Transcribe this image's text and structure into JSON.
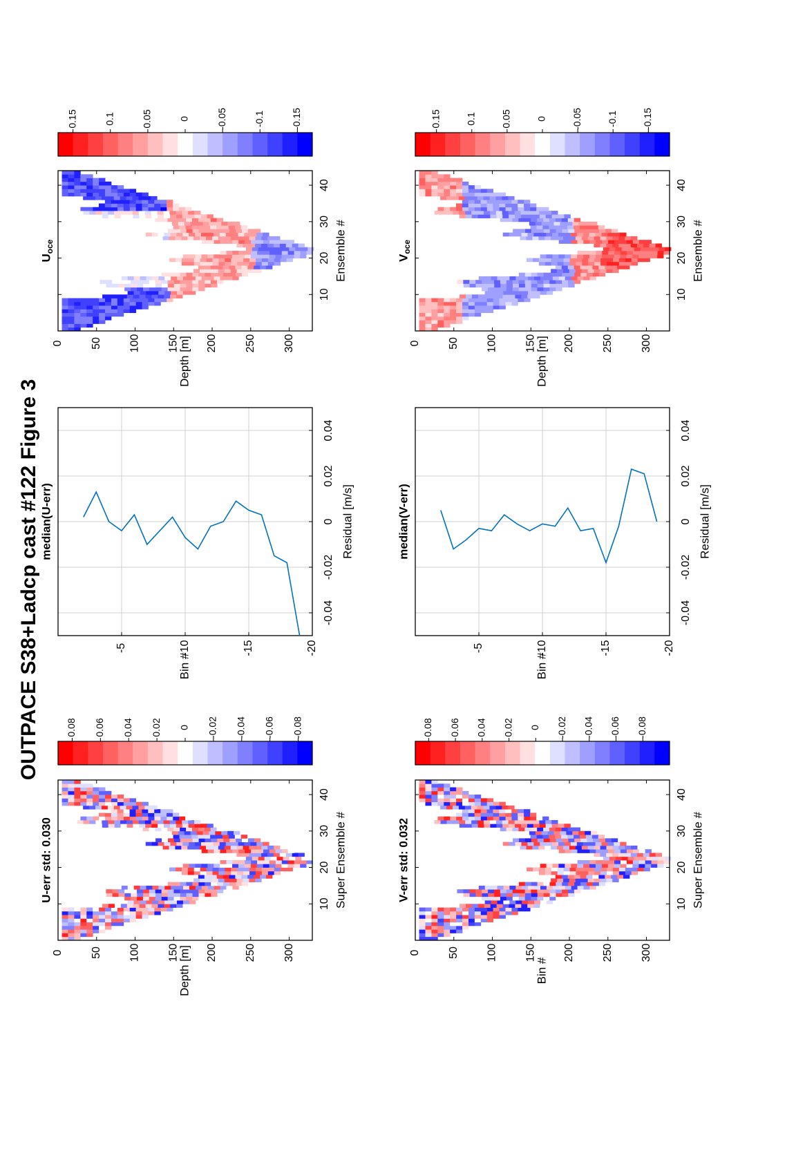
{
  "suptitle": "OUTPACE S38+Ladcp cast #122  Figure 3",
  "chart_data": [
    {
      "id": "u_err_map",
      "type": "heatmap",
      "title": "U-err std: 0.030",
      "xlabel": "Depth [m]",
      "ylabel": "Super Ensemble #",
      "depth_range": [
        0,
        330
      ],
      "depth_ticks": [
        0,
        50,
        100,
        150,
        200,
        250,
        300
      ],
      "ensemble_range": [
        1,
        44
      ],
      "ensemble_ticks": [
        10,
        20,
        30,
        40
      ],
      "pattern": "V-shaped cast track: depth increases from ensemble 1 to ~22 (max ~325 m) then decreases to ensemble 44",
      "colorbar": {
        "range": [
          -0.09,
          0.09
        ],
        "ticks": [
          0.08,
          0.06,
          0.04,
          0.02,
          0,
          -0.02,
          -0.04,
          -0.06,
          -0.08
        ],
        "tick_labels": [
          "0.08",
          "0.06",
          "0.04",
          "0.02",
          "0",
          "-0.02",
          "-0.04",
          "-0.06",
          "-0.08"
        ],
        "colormap": "red-white-blue",
        "positive_color": "#ff0000",
        "negative_color": "#0000ff"
      }
    },
    {
      "id": "u_median",
      "type": "line",
      "title": "median(U-err)",
      "xlabel": "Bin #",
      "ylabel": "Residual [m/s]",
      "bin_range": [
        -20,
        0
      ],
      "bin_ticks": [
        -5,
        -10,
        -15,
        -20
      ],
      "residual_range": [
        -0.05,
        0.05
      ],
      "residual_ticks": [
        -0.04,
        -0.02,
        0,
        0.02,
        0.04
      ],
      "residual_tick_labels": [
        "-0.04",
        "-0.02",
        "0",
        "0.02",
        "0.04"
      ],
      "grid": true,
      "series": [
        {
          "bin": [
            -2,
            -3,
            -4,
            -5,
            -6,
            -7,
            -8,
            -9,
            -10,
            -11,
            -12,
            -13,
            -14,
            -15,
            -16,
            -17,
            -18,
            -19
          ],
          "residual": [
            0.002,
            0.013,
            0.0,
            -0.004,
            0.003,
            -0.01,
            -0.004,
            0.002,
            -0.007,
            -0.012,
            -0.002,
            0.0,
            0.009,
            0.005,
            0.003,
            -0.015,
            -0.018,
            -0.05
          ]
        }
      ]
    },
    {
      "id": "u_oce_map",
      "type": "heatmap",
      "title": "U",
      "title_subscript": "oce",
      "xlabel": "Depth [m]",
      "ylabel": "Ensemble #",
      "depth_range": [
        0,
        330
      ],
      "depth_ticks": [
        0,
        50,
        100,
        150,
        200,
        250,
        300
      ],
      "ensemble_range": [
        1,
        44
      ],
      "ensemble_ticks": [
        10,
        20,
        30,
        40
      ],
      "pattern": "V-shaped cast track; strong blue near 60-130 m at ensembles 1-12 and 35-44, red 150-300 m on both limbs, blue near bottom around ensemble 20-26",
      "colorbar": {
        "range": [
          -0.17,
          0.17
        ],
        "ticks": [
          0.15,
          0.1,
          0.05,
          0,
          -0.05,
          -0.1,
          -0.15
        ],
        "tick_labels": [
          "0.15",
          "0.1",
          "0.05",
          "0",
          "-0.05",
          "-0.1",
          "-0.15"
        ],
        "colormap": "red-white-blue"
      }
    },
    {
      "id": "v_err_map",
      "type": "heatmap",
      "title": "V-err std: 0.032",
      "xlabel": "Bin #",
      "ylabel": "Super Ensemble #",
      "depth_range": [
        0,
        330
      ],
      "depth_ticks": [
        0,
        50,
        100,
        150,
        200,
        250,
        300
      ],
      "ensemble_range": [
        1,
        44
      ],
      "ensemble_ticks": [
        10,
        20,
        30,
        40
      ],
      "colorbar": {
        "range": [
          -0.1,
          0.09
        ],
        "ticks": [
          0.08,
          0.06,
          0.04,
          0.02,
          0,
          -0.02,
          -0.04,
          -0.06,
          -0.08
        ],
        "tick_labels": [
          "0.08",
          "0.06",
          "0.04",
          "0.02",
          "0",
          "-0.02",
          "-0.04",
          "-0.06",
          "-0.08"
        ],
        "colormap": "red-white-blue"
      }
    },
    {
      "id": "v_median",
      "type": "line",
      "title": "median(V-err)",
      "xlabel": "Bin #",
      "ylabel": "Residual [m/s]",
      "bin_range": [
        -20,
        0
      ],
      "bin_ticks": [
        -5,
        -10,
        -15,
        -20
      ],
      "residual_range": [
        -0.05,
        0.05
      ],
      "residual_ticks": [
        -0.04,
        -0.02,
        0,
        0.02,
        0.04
      ],
      "residual_tick_labels": [
        "-0.04",
        "-0.02",
        "0",
        "0.02",
        "0.04"
      ],
      "grid": true,
      "series": [
        {
          "bin": [
            -2,
            -3,
            -4,
            -5,
            -6,
            -7,
            -8,
            -9,
            -10,
            -11,
            -12,
            -13,
            -14,
            -15,
            -16,
            -17,
            -18,
            -19
          ],
          "residual": [
            0.005,
            -0.012,
            -0.008,
            -0.003,
            -0.004,
            0.003,
            -0.001,
            -0.004,
            -0.001,
            -0.002,
            0.006,
            -0.004,
            -0.003,
            -0.018,
            -0.002,
            0.023,
            0.021,
            0.0
          ]
        }
      ]
    },
    {
      "id": "v_oce_map",
      "type": "heatmap",
      "title": "V",
      "title_subscript": "oce",
      "xlabel": "Depth [m]",
      "ylabel": "Ensemble #",
      "depth_range": [
        0,
        330
      ],
      "depth_ticks": [
        0,
        50,
        100,
        150,
        200,
        250,
        300
      ],
      "ensemble_range": [
        1,
        44
      ],
      "ensemble_ticks": [
        10,
        20,
        30,
        40
      ],
      "pattern": "V-shaped cast track; red near surface limbs, blue 80-200 m, strong red near bottom at ensembles 18-26",
      "colorbar": {
        "range": [
          -0.18,
          0.18
        ],
        "ticks": [
          0.15,
          0.1,
          0.05,
          0,
          -0.05,
          -0.1,
          -0.15
        ],
        "tick_labels": [
          "0.15",
          "0.1",
          "0.05",
          "0",
          "-0.05",
          "-0.1",
          "-0.15"
        ],
        "colormap": "red-white-blue"
      }
    }
  ]
}
